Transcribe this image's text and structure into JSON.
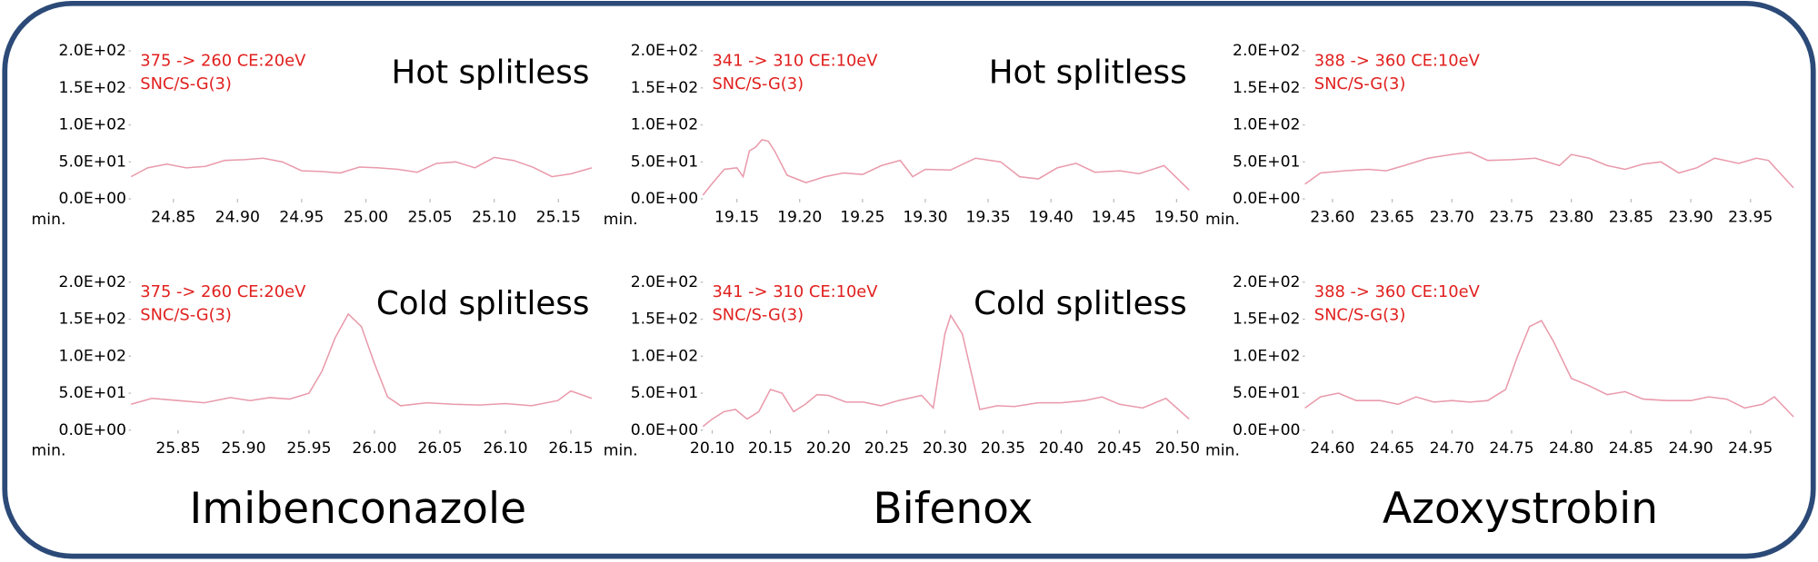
{
  "chart_data": [
    {
      "type": "line",
      "title": "Hot splitless",
      "annotations": [
        "375 -> 260 CE:20eV",
        "SNC/S-G(3)"
      ],
      "xlabel": "min.",
      "color": "#e99aab",
      "x": [
        24.817,
        24.83,
        24.845,
        24.86,
        24.875,
        24.89,
        24.905,
        24.92,
        24.935,
        24.95,
        24.965,
        24.98,
        24.995,
        25.01,
        25.025,
        25.04,
        25.055,
        25.07,
        25.085,
        25.1,
        25.115,
        25.13,
        25.145,
        25.16,
        25.176
      ],
      "values": [
        30,
        42,
        47,
        42,
        44,
        52,
        53,
        55,
        50,
        38,
        37,
        35,
        43,
        42,
        40,
        36,
        48,
        50,
        42,
        56,
        52,
        43,
        30,
        34,
        42
      ],
      "xlim": [
        24.817,
        25.176
      ],
      "xticks": [
        24.85,
        {
          "value": 24.9,
          "label": "24.90"
        },
        24.95,
        {
          "value": 25,
          "label": "25.00"
        },
        25.05,
        {
          "value": 25.1,
          "label": "25.10"
        },
        25.15
      ],
      "ylim": [
        0,
        200
      ],
      "yticks": [
        {
          "value": 0,
          "label": "0.0E+00"
        },
        {
          "value": 50,
          "label": "5.0E+01"
        },
        {
          "value": 100,
          "label": "1.0E+02"
        },
        {
          "value": 150,
          "label": "1.5E+02"
        },
        {
          "value": 200,
          "label": "2.0E+02"
        }
      ]
    },
    {
      "type": "line",
      "title": "Hot splitless",
      "annotations": [
        "341 -> 310 CE:10eV",
        "SNC/S-G(3)"
      ],
      "xlabel": "min.",
      "color": "#e99aab",
      "x": [
        19.123,
        19.13,
        19.14,
        19.15,
        19.155,
        19.16,
        19.165,
        19.17,
        19.175,
        19.18,
        19.19,
        19.205,
        19.22,
        19.235,
        19.25,
        19.265,
        19.28,
        19.29,
        19.3,
        19.32,
        19.34,
        19.36,
        19.375,
        19.39,
        19.405,
        19.42,
        19.435,
        19.455,
        19.47,
        19.49,
        19.51
      ],
      "values": [
        5,
        20,
        40,
        42,
        30,
        65,
        70,
        80,
        78,
        65,
        32,
        22,
        30,
        35,
        33,
        45,
        52,
        30,
        40,
        39,
        55,
        50,
        30,
        27,
        42,
        48,
        36,
        38,
        34,
        45,
        12
      ],
      "xlim": [
        19.123,
        19.51
      ],
      "xticks": [
        19.15,
        {
          "value": 19.2,
          "label": "19.20"
        },
        19.25,
        {
          "value": 19.3,
          "label": "19.30"
        },
        19.35,
        {
          "value": 19.4,
          "label": "19.40"
        },
        19.45,
        {
          "value": 19.5,
          "label": "19.50"
        }
      ],
      "ylim": [
        0,
        200
      ],
      "yticks": [
        {
          "value": 0,
          "label": "0.0E+00"
        },
        {
          "value": 50,
          "label": "5.0E+01"
        },
        {
          "value": 100,
          "label": "1.0E+02"
        },
        {
          "value": 150,
          "label": "1.5E+02"
        },
        {
          "value": 200,
          "label": "2.0E+02"
        }
      ]
    },
    {
      "type": "line",
      "annotations": [
        "388 -> 360 CE:10eV",
        "SNC/S-G(3)"
      ],
      "xlabel": "min.",
      "color": "#e99aab",
      "x": [
        23.577,
        23.59,
        23.61,
        23.63,
        23.645,
        23.66,
        23.68,
        23.7,
        23.715,
        23.73,
        23.75,
        23.77,
        23.79,
        23.8,
        23.815,
        23.83,
        23.845,
        23.86,
        23.875,
        23.89,
        23.905,
        23.92,
        23.94,
        23.955,
        23.965,
        23.986
      ],
      "values": [
        20,
        35,
        38,
        40,
        38,
        45,
        55,
        60,
        63,
        52,
        53,
        55,
        45,
        60,
        55,
        45,
        40,
        47,
        50,
        35,
        42,
        55,
        48,
        55,
        52,
        15
      ],
      "xlim": [
        23.577,
        23.986
      ],
      "xticks": [
        {
          "value": 23.6,
          "label": "23.60"
        },
        23.65,
        {
          "value": 23.7,
          "label": "23.70"
        },
        23.75,
        {
          "value": 23.8,
          "label": "23.80"
        },
        23.85,
        {
          "value": 23.9,
          "label": "23.90"
        },
        23.95
      ],
      "ylim": [
        0,
        200
      ],
      "yticks": [
        {
          "value": 0,
          "label": "0.0E+00"
        },
        {
          "value": 50,
          "label": "5.0E+01"
        },
        {
          "value": 100,
          "label": "1.0E+02"
        },
        {
          "value": 150,
          "label": "1.5E+02"
        },
        {
          "value": 200,
          "label": "2.0E+02"
        }
      ]
    },
    {
      "type": "line",
      "title": "Cold splitless",
      "annotations": [
        "375 -> 260 CE:20eV",
        "SNC/S-G(3)"
      ],
      "xlabel": "min.",
      "color": "#e99aab",
      "x": [
        25.814,
        25.83,
        25.85,
        25.87,
        25.89,
        25.905,
        25.92,
        25.935,
        25.95,
        25.96,
        25.97,
        25.98,
        25.99,
        26.0,
        26.01,
        26.02,
        26.04,
        26.06,
        26.08,
        26.1,
        26.12,
        26.14,
        26.15,
        26.166
      ],
      "values": [
        35,
        43,
        40,
        37,
        44,
        40,
        44,
        42,
        50,
        80,
        125,
        157,
        140,
        90,
        45,
        33,
        37,
        35,
        34,
        36,
        33,
        40,
        53,
        43
      ],
      "xlim": [
        25.814,
        26.166
      ],
      "xticks": [
        25.85,
        {
          "value": 25.9,
          "label": "25.90"
        },
        25.95,
        {
          "value": 26,
          "label": "26.00"
        },
        26.05,
        {
          "value": 26.1,
          "label": "26.10"
        },
        26.15
      ],
      "ylim": [
        0,
        200
      ],
      "yticks": [
        {
          "value": 0,
          "label": "0.0E+00"
        },
        {
          "value": 50,
          "label": "5.0E+01"
        },
        {
          "value": 100,
          "label": "1.0E+02"
        },
        {
          "value": 150,
          "label": "1.5E+02"
        },
        {
          "value": 200,
          "label": "2.0E+02"
        }
      ]
    },
    {
      "type": "line",
      "title": "Cold splitless",
      "annotations": [
        "341 -> 310 CE:10eV",
        "SNC/S-G(3)"
      ],
      "xlabel": "min.",
      "color": "#e99aab",
      "x": [
        20.092,
        20.1,
        20.11,
        20.12,
        20.13,
        20.14,
        20.15,
        20.16,
        20.17,
        20.18,
        20.19,
        20.2,
        20.215,
        20.23,
        20.245,
        20.26,
        20.28,
        20.29,
        20.3,
        20.305,
        20.315,
        20.33,
        20.345,
        20.36,
        20.38,
        20.4,
        20.42,
        20.435,
        20.45,
        20.47,
        20.49,
        20.51
      ],
      "values": [
        5,
        15,
        25,
        28,
        15,
        25,
        55,
        50,
        25,
        35,
        48,
        47,
        38,
        38,
        33,
        40,
        47,
        30,
        130,
        155,
        130,
        28,
        33,
        32,
        37,
        37,
        40,
        45,
        35,
        30,
        43,
        15
      ],
      "xlim": [
        20.092,
        20.51
      ],
      "xticks": [
        {
          "value": 20.1,
          "label": "20.10"
        },
        20.15,
        {
          "value": 20.2,
          "label": "20.20"
        },
        20.25,
        {
          "value": 20.3,
          "label": "20.30"
        },
        20.35,
        {
          "value": 20.4,
          "label": "20.40"
        },
        20.45,
        {
          "value": 20.5,
          "label": "20.50"
        }
      ],
      "ylim": [
        0,
        200
      ],
      "yticks": [
        {
          "value": 0,
          "label": "0.0E+00"
        },
        {
          "value": 50,
          "label": "5.0E+01"
        },
        {
          "value": 100,
          "label": "1.0E+02"
        },
        {
          "value": 150,
          "label": "1.5E+02"
        },
        {
          "value": 200,
          "label": "2.0E+02"
        }
      ]
    },
    {
      "type": "line",
      "annotations": [
        "388 -> 360 CE:10eV",
        "SNC/S-G(3)"
      ],
      "xlabel": "min.",
      "color": "#e99aab",
      "x": [
        24.577,
        24.59,
        24.605,
        24.62,
        24.64,
        24.655,
        24.67,
        24.685,
        24.7,
        24.715,
        24.73,
        24.745,
        24.755,
        24.765,
        24.775,
        24.785,
        24.8,
        24.815,
        24.83,
        24.845,
        24.86,
        24.88,
        24.9,
        24.915,
        24.93,
        24.945,
        24.96,
        24.97,
        24.986
      ],
      "values": [
        30,
        45,
        50,
        40,
        40,
        35,
        45,
        38,
        40,
        38,
        40,
        55,
        100,
        140,
        148,
        120,
        70,
        60,
        48,
        52,
        42,
        40,
        40,
        45,
        42,
        30,
        35,
        45,
        18
      ],
      "xlim": [
        24.577,
        24.986
      ],
      "xticks": [
        {
          "value": 24.6,
          "label": "24.60"
        },
        24.65,
        {
          "value": 24.7,
          "label": "24.70"
        },
        24.75,
        {
          "value": 24.8,
          "label": "24.80"
        },
        24.85,
        {
          "value": 24.9,
          "label": "24.90"
        },
        24.95
      ],
      "ylim": [
        0,
        200
      ],
      "yticks": [
        {
          "value": 0,
          "label": "0.0E+00"
        },
        {
          "value": 50,
          "label": "5.0E+01"
        },
        {
          "value": 100,
          "label": "1.0E+02"
        },
        {
          "value": 150,
          "label": "1.5E+02"
        },
        {
          "value": 200,
          "label": "2.0E+02"
        }
      ]
    }
  ],
  "compounds": [
    "Imibenconazole",
    "Bifenox",
    "Azoxystrobin"
  ]
}
